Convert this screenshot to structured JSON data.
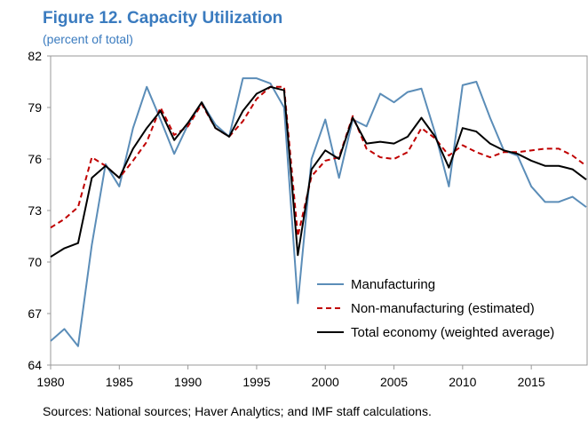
{
  "chart_data": {
    "type": "line",
    "title": "Figure 12. Capacity Utilization",
    "subtitle": "(percent of total)",
    "source": "Sources: National sources; Haver Analytics; and IMF staff calculations.",
    "x": [
      1980,
      1981,
      1982,
      1983,
      1984,
      1985,
      1986,
      1987,
      1988,
      1989,
      1990,
      1991,
      1992,
      1993,
      1994,
      1995,
      1996,
      1997,
      1998,
      1999,
      2000,
      2001,
      2002,
      2003,
      2004,
      2005,
      2006,
      2007,
      2008,
      2009,
      2010,
      2011,
      2012,
      2013,
      2014,
      2015,
      2016,
      2017,
      2018,
      2019
    ],
    "series": [
      {
        "name": "Manufacturing",
        "color": "#5b8db8",
        "dashed": false,
        "values": [
          65.4,
          66.1,
          65.1,
          71.0,
          75.7,
          74.4,
          77.8,
          80.2,
          78.3,
          76.3,
          78.0,
          79.3,
          78.0,
          77.3,
          80.7,
          80.7,
          80.4,
          79.0,
          67.6,
          76.0,
          78.3,
          74.9,
          78.3,
          77.9,
          79.8,
          79.3,
          79.9,
          80.1,
          77.5,
          74.4,
          80.3,
          80.5,
          78.4,
          76.5,
          76.2,
          74.4,
          73.5,
          73.5,
          73.8,
          73.2
        ]
      },
      {
        "name": "Non-manufacturing (estimated)",
        "color": "#c00000",
        "dashed": true,
        "values": [
          72.0,
          72.5,
          73.2,
          76.1,
          75.6,
          74.9,
          75.9,
          77.0,
          79.0,
          77.4,
          77.9,
          79.2,
          77.8,
          77.3,
          78.2,
          79.5,
          80.2,
          80.2,
          71.5,
          75.0,
          75.9,
          76.1,
          78.5,
          76.6,
          76.1,
          76.0,
          76.4,
          77.8,
          77.2,
          76.2,
          76.8,
          76.4,
          76.1,
          76.4,
          76.4,
          76.5,
          76.6,
          76.6,
          76.2,
          75.6
        ]
      },
      {
        "name": "Total economy (weighted average)",
        "color": "#000000",
        "dashed": false,
        "values": [
          70.3,
          70.8,
          71.1,
          74.9,
          75.6,
          74.9,
          76.6,
          77.8,
          78.8,
          77.1,
          78.1,
          79.3,
          77.8,
          77.3,
          78.8,
          79.8,
          80.2,
          80.0,
          70.4,
          75.4,
          76.5,
          76.0,
          78.4,
          76.9,
          77.0,
          76.9,
          77.3,
          78.4,
          77.3,
          75.5,
          77.8,
          77.6,
          76.9,
          76.5,
          76.3,
          75.9,
          75.6,
          75.6,
          75.4,
          74.8
        ]
      }
    ],
    "xlim": [
      1980,
      2019
    ],
    "xticks": [
      1980,
      1985,
      1990,
      1995,
      2000,
      2005,
      2010,
      2015
    ],
    "ylim": [
      64,
      82
    ],
    "yticks": [
      64,
      67,
      70,
      73,
      76,
      79,
      82
    ],
    "grid": false,
    "legend": "lower right"
  }
}
